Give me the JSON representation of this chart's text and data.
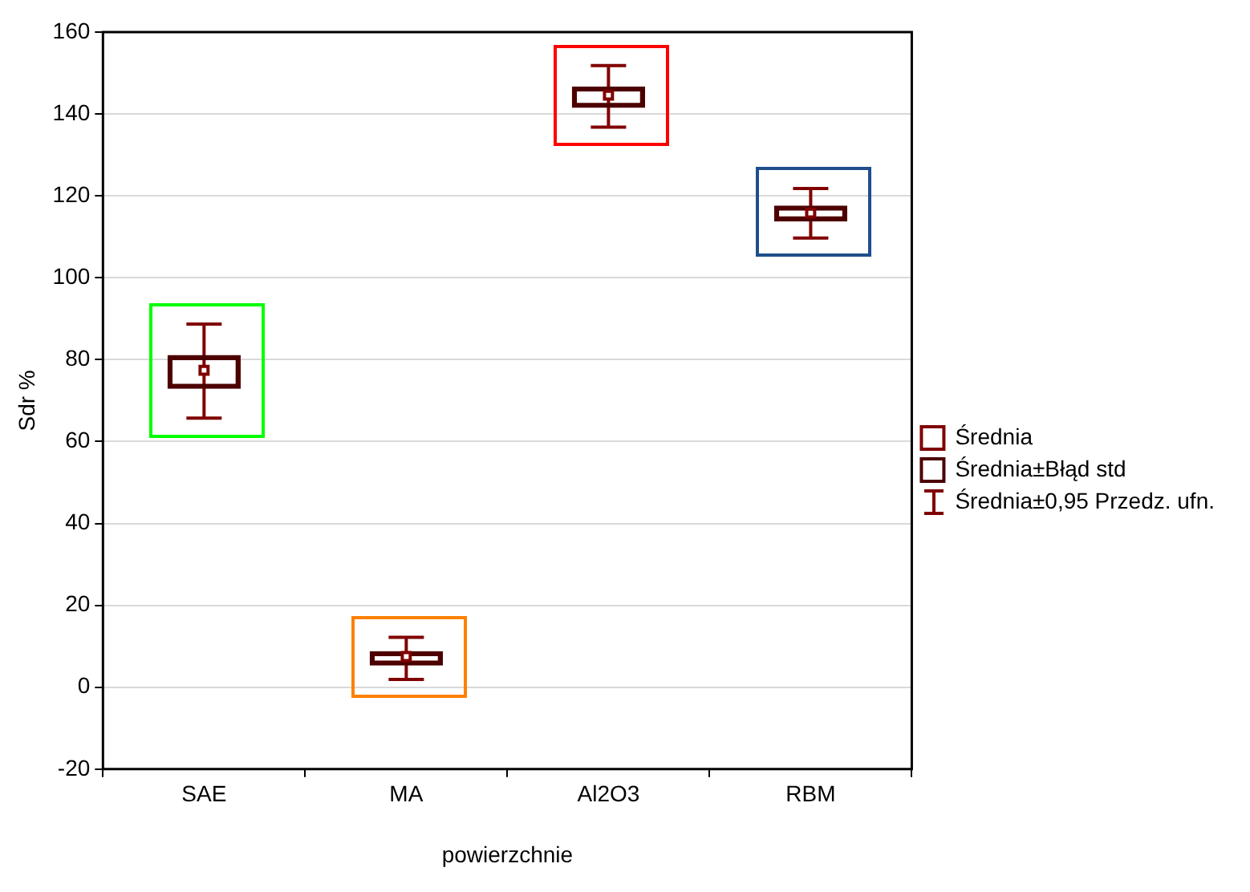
{
  "chart_data": {
    "type": "bar",
    "xlabel": "powierzchnie",
    "ylabel": "Sdr %",
    "categories": [
      "SAE",
      "MA",
      "Al2O3",
      "RBM"
    ],
    "ylim": [
      -20,
      160
    ],
    "yticks": [
      -20,
      0,
      20,
      40,
      60,
      80,
      100,
      120,
      140,
      160
    ],
    "grid": "y",
    "legend": "right",
    "annotations": [
      "Średnia±0,95 Przedz. ufn."
    ],
    "series": [
      {
        "name": "Średnia",
        "type": "scatter",
        "color": "#800000",
        "marker": "square",
        "x": [
          "SAE",
          "MA",
          "Al2O3",
          "RBM"
        ],
        "values": [
          77.4,
          7.5,
          144.6,
          115.8
        ],
        "errors": [
          [
            65.7,
            88.7
          ],
          [
            1.9,
            12.2
          ],
          [
            136.8,
            151.8
          ],
          [
            109.7,
            121.8
          ]
        ]
      },
      {
        "name": "Średnia±Błąd std",
        "type": "bar",
        "color": "#4d0000",
        "base": [
          73.0,
          5.4,
          141.6,
          113.9
        ],
        "values": [
          8.0,
          3.3,
          5.0,
          3.6
        ]
      }
    ]
  }
}
